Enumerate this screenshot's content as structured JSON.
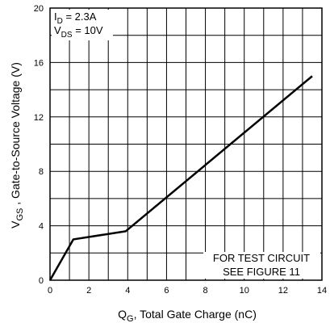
{
  "chart_data": {
    "type": "line",
    "xlabel_main": "Q",
    "xlabel_sub": "G",
    "xlabel_rest": ", Total Gate Charge (nC)",
    "ylabel_main": "V",
    "ylabel_sub": "GS",
    "ylabel_rest": " , Gate-to-Source Voltage (V)",
    "xlim": [
      0,
      14
    ],
    "ylim": [
      0,
      20
    ],
    "x_ticks": [
      "0",
      "2",
      "4",
      "6",
      "8",
      "10",
      "12",
      "14"
    ],
    "y_ticks": [
      "0",
      "4",
      "8",
      "12",
      "16",
      "20"
    ],
    "grid": true,
    "series": [
      {
        "x": [
          0,
          1.2,
          3.9,
          13.5
        ],
        "y": [
          0,
          3.0,
          3.6,
          15.0
        ]
      }
    ],
    "condition1": {
      "main": "I",
      "sub": "D",
      "rest": " = 2.3A"
    },
    "condition2": {
      "main": "V",
      "sub": "DS",
      "rest": " = 10V"
    },
    "note_line1": "FOR TEST CIRCUIT",
    "note_line2": "SEE FIGURE 11"
  }
}
